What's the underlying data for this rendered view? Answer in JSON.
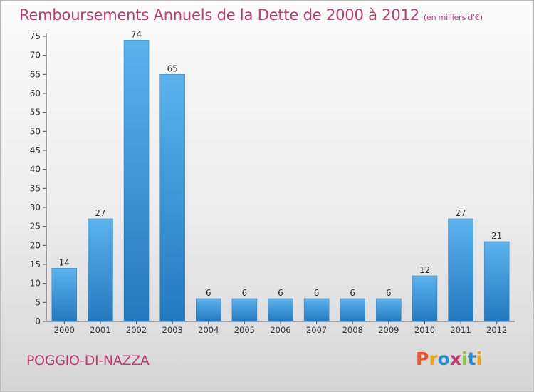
{
  "title": "Remboursements Annuels de la Dette de 2000 à 2012",
  "unit": "(en milliers d'€)",
  "commune": "POGGIO-DI-NAZZA",
  "logo": {
    "text": "Proxiti",
    "letters": [
      {
        "ch": "P",
        "color": "#e8532f"
      },
      {
        "ch": "r",
        "color": "#f2a21a"
      },
      {
        "ch": "o",
        "color": "#2a8ad0"
      },
      {
        "ch": "x",
        "color": "#c0396f"
      },
      {
        "ch": "i",
        "color": "#8cc63f"
      },
      {
        "ch": "t",
        "color": "#2a8ad0"
      },
      {
        "ch": "i",
        "color": "#f2a21a"
      }
    ]
  },
  "chart_data": {
    "type": "bar",
    "title": "Remboursements Annuels de la Dette de 2000 à 2012",
    "categories": [
      "2000",
      "2001",
      "2002",
      "2003",
      "2004",
      "2005",
      "2006",
      "2007",
      "2008",
      "2009",
      "2010",
      "2011",
      "2012"
    ],
    "values": [
      14,
      27,
      74,
      65,
      6,
      6,
      6,
      6,
      6,
      6,
      12,
      27,
      21
    ],
    "ylim": [
      0,
      75
    ],
    "yticks": [
      0,
      5,
      10,
      15,
      20,
      25,
      30,
      35,
      40,
      45,
      50,
      55,
      60,
      65,
      70,
      75
    ],
    "grid": false,
    "bar_color": "#3d96d8"
  }
}
